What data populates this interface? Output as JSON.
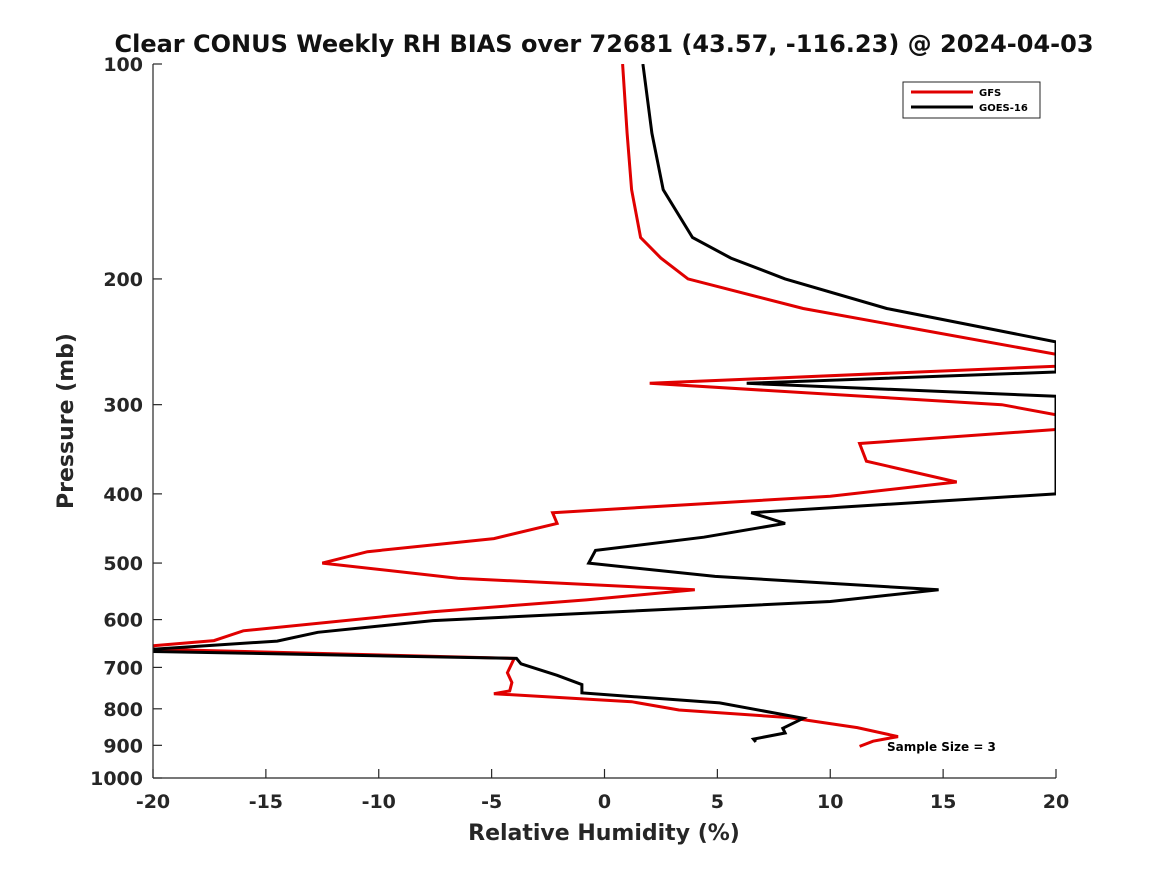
{
  "chart_data": {
    "type": "line",
    "title": "Clear CONUS Weekly RH BIAS over 72681 (43.57, -116.23) @ 2024-04-03",
    "xlabel": "Relative Humidity (%)",
    "ylabel": "Pressure (mb)",
    "xlim": [
      -20,
      20
    ],
    "ylim": [
      100,
      1000
    ],
    "y_scale": "log",
    "y_reversed": true,
    "x_ticks": [
      -20,
      -15,
      -10,
      -5,
      0,
      5,
      10,
      15,
      20
    ],
    "y_ticks": [
      100,
      200,
      300,
      400,
      500,
      600,
      700,
      800,
      900,
      1000
    ],
    "grid": false,
    "legend_position": "top-right",
    "annotation": "Sample Size = 3",
    "series": [
      {
        "name": "GFS",
        "color": "#e00000",
        "points": [
          [
            0.8,
            100
          ],
          [
            1.0,
            125
          ],
          [
            1.2,
            150
          ],
          [
            1.6,
            175
          ],
          [
            2.5,
            187
          ],
          [
            3.7,
            200
          ],
          [
            8.8,
            220
          ],
          [
            20.0,
            255
          ],
          [
            20.0,
            265
          ],
          [
            2.0,
            280
          ],
          [
            17.6,
            300
          ],
          [
            20.0,
            310
          ],
          [
            20.0,
            325
          ],
          [
            11.3,
            340
          ],
          [
            11.6,
            360
          ],
          [
            15.6,
            385
          ],
          [
            10.0,
            403
          ],
          [
            -2.3,
            425
          ],
          [
            -2.1,
            440
          ],
          [
            -4.9,
            462
          ],
          [
            -10.5,
            482
          ],
          [
            -12.5,
            500
          ],
          [
            -6.5,
            525
          ],
          [
            4.0,
            545
          ],
          [
            -0.8,
            563
          ],
          [
            -7.6,
            585
          ],
          [
            -16.0,
            622
          ],
          [
            -17.3,
            642
          ],
          [
            -20.0,
            653
          ],
          [
            -20.0,
            660
          ],
          [
            -4.0,
            680
          ],
          [
            -4.3,
            712
          ],
          [
            -4.1,
            735
          ],
          [
            -4.2,
            755
          ],
          [
            -4.9,
            762
          ],
          [
            1.2,
            782
          ],
          [
            3.3,
            803
          ],
          [
            8.2,
            823
          ],
          [
            11.2,
            850
          ],
          [
            13.0,
            875
          ],
          [
            11.9,
            888
          ],
          [
            11.3,
            903
          ]
        ]
      },
      {
        "name": "GOES-16",
        "color": "#000000",
        "points": [
          [
            1.7,
            100
          ],
          [
            2.1,
            125
          ],
          [
            2.6,
            150
          ],
          [
            3.9,
            175
          ],
          [
            5.6,
            187
          ],
          [
            8.0,
            200
          ],
          [
            12.5,
            220
          ],
          [
            20.0,
            245
          ],
          [
            20.0,
            270
          ],
          [
            6.3,
            280
          ],
          [
            20.0,
            292
          ],
          [
            20.0,
            400
          ],
          [
            6.5,
            425
          ],
          [
            8.0,
            440
          ],
          [
            4.4,
            460
          ],
          [
            -0.4,
            480
          ],
          [
            -0.7,
            500
          ],
          [
            4.9,
            522
          ],
          [
            14.8,
            545
          ],
          [
            10.0,
            566
          ],
          [
            -7.6,
            602
          ],
          [
            -12.7,
            625
          ],
          [
            -14.5,
            643
          ],
          [
            -20.0,
            660
          ],
          [
            -20.0,
            665
          ],
          [
            -3.9,
            680
          ],
          [
            -3.7,
            692
          ],
          [
            -2.1,
            718
          ],
          [
            -1.0,
            740
          ],
          [
            -1.0,
            760
          ],
          [
            5.1,
            785
          ],
          [
            8.8,
            825
          ],
          [
            7.9,
            852
          ],
          [
            8.0,
            865
          ],
          [
            6.6,
            882
          ],
          [
            6.7,
            890
          ]
        ]
      }
    ]
  }
}
